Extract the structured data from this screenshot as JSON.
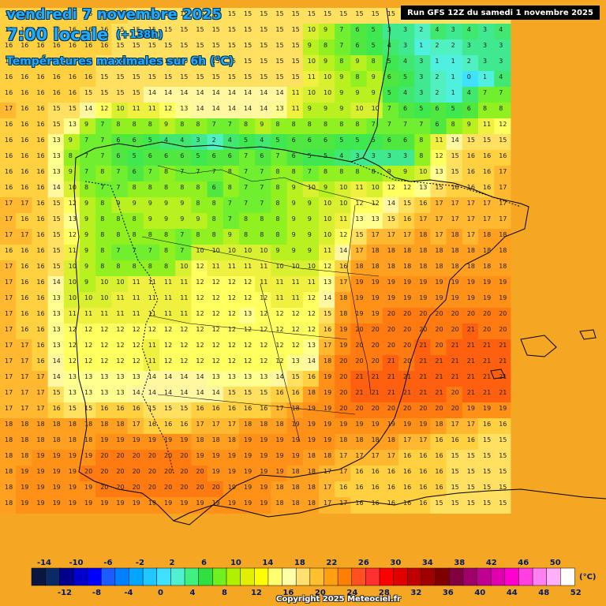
{
  "header": {
    "date": "vendredi 7 novembre 2025",
    "time": "7:00 locale",
    "lead": "(+138h)",
    "parameter": "Températures maximales sur 6h (°C)",
    "run": "Run GFS 12Z du samedi 1 novembre 2025"
  },
  "footer": {
    "copyright": "Copyright 2025 Meteociel.fr"
  },
  "legend": {
    "unit": "(°C)",
    "top_labels": [
      "-14",
      "-10",
      "-6",
      "-2",
      "2",
      "6",
      "10",
      "14",
      "18",
      "22",
      "26",
      "30",
      "34",
      "38",
      "42",
      "46",
      "50"
    ],
    "bottom_labels": [
      "-12",
      "-8",
      "-4",
      "0",
      "4",
      "8",
      "12",
      "16",
      "20",
      "24",
      "28",
      "32",
      "36",
      "40",
      "44",
      "48",
      "52"
    ],
    "colors": [
      "#0a1540",
      "#0a2a66",
      "#00008b",
      "#0000cd",
      "#0000ff",
      "#1a5cff",
      "#0080ff",
      "#00a6ff",
      "#20c8ff",
      "#40e0ff",
      "#50f0d0",
      "#40f080",
      "#30e040",
      "#70f020",
      "#b0f000",
      "#e0f000",
      "#ffff00",
      "#ffff70",
      "#ffffa8",
      "#ffe070",
      "#ffc030",
      "#ffa010",
      "#ff8000",
      "#ff5020",
      "#ff3030",
      "#ff0000",
      "#e00000",
      "#c00000",
      "#a00000",
      "#800000",
      "#800040",
      "#a0006a",
      "#c00090",
      "#e000b0",
      "#ff00d0",
      "#ff40e0",
      "#ff80f0",
      "#ffb0f8",
      "#ffffff"
    ]
  },
  "grid_rows": [
    "16 16 16 16 16 16 16 16 15 15 15 15 15 15 15 15 15 15 15 15 15 15 15 15",
    "16 16 16 16 16 16 16 15 15 15 15 15 15 15 15 15 15 15 15 10  9  7  6  5",
    "16 16 16 16 16 16 16 15 15 15 15 15 15 15 15 15 15 15 15  9  8  7  6  5",
    "16 16 16 16 16 16 15 15 15 15 15 15 15 15 15 15 15 15 15 10  9  8  9  8",
    "16 16 16 16 16 16 15 15 15 15 15 15 15 15 15 15 15 15 15 11 10  9  8  9",
    "16 16 16 16 16 15 15 15 15 14 14 14 14 14 14 14 14 14 11 10 10  9  9  9",
    "17 16 16 15 15 14 12 10 11 11 12 13 14 14 14 14 14 13 11  9  9  9 10 10",
    "16 16 16 15 13  9  7  8  8  8  9  8  8  7  7  8  9  8  8  8  8  8  8  7",
    "16 16 16 13  9  7  7  6  6  5  4  4  3  2  4  5  4  5  6  6  6  5  5  5",
    "16 16 16 13  8  7  7  6  5  6  6  6  5  6  6  7  6  7  6  5  5  4  3  3",
    "16 16 16 13  9  7  8  7  6  7  8  7  7  7  8  7  7  8  8  7  8  8  8  8",
    "16 16 16 14 10  8  7  7  8  8  8  8  8  6  8  7  7  8  9 10  9 10 11 10",
    "17 17 16 15 12  9  8  9  9  9  9  9  8  8  7  7  7  8  9  9 10 10 12 12",
    "17 16 16 15 13  9  8  8  8  9  9  9  9  8  7  8  8  8  9  9 10 11 13 13",
    "17 17 16 15 12  9  8  8  8  8  8  7  8  8  9  8  8  8  9  9 10 12 15 17",
    "16 16 16 15 11  9  8  7  7  7  8  7 10 10 10 10 10  9  9  9 11 14 17 18",
    "17 16 16 15 10  9  8  8  8  8  8 10 12 11 11 11 11 10 10 10 12 16 18 18",
    "17 16 16 14 10  9 10 10 11 11 11 11 12 12 12 12 11 11 11 11 13 17 19 19",
    "17 16 16 13 10 10 10 11 11 11 11 11 12 12 12 12 12 11 11 12 14 18 19 19",
    "17 16 16 13 11 11 11 11 11 11 11 11 12 12 12 13 12 12 12 12 15 18 19 19",
    "17 16 16 13 12 12 12 12 12 12 12 12 12 12 12 12 12 12 12 12 16 19 20 20",
    "17 17 16 13 12 12 12 12 12 11 12 12 12 12 12 12 12 12 12 13 17 19 20 20",
    "17 17 16 14 12 12 12 12 12 11 12 12 12 12 12 12 12 12 13 14 18 20 20 20",
    "17 17 17 14 13 13 13 13 13 14 14 14 14 13 13 13 13 14 15 16 19 20 21 21",
    "17 17 17 15 13 13 13 13 14 14 14 14 14 14 15 15 15 16 16 18 19 20 21 21",
    "17 17 17 16 15 15 16 16 16 15 15 15 16 16 16 16 16 17 18 19 19 20 20 20",
    "18 18 18 18 18 18 18 18 17 16 16 16 17 17 17 18 18 18 19 19 19 19 19 19",
    "18 18 18 18 18 18 19 19 19 19 19 19 18 18 18 19 19 19 19 19 19 18 18 18",
    "18 18 19 19 19 19 20 20 20 20 20 20 19 19 19 19 19 19 19 18 18 17 17 17",
    "18 19 19 19 19 20 20 20 20 20 20 20 20 19 19 19 19 19 18 18 17 17 16 16",
    "18 19 19 19 19 19 20 20 20 20 20 20 20 20 19 19 19 18 18 18 17 16 16 16",
    "18 19 19 19 19 19 19 19 19 19 19 19 19 19 19 19 19 18 18 18 17 17 16 16"
  ],
  "grid_rows_east": [
    "15 15 15 15 15 15 15 15",
    " 3  3  2  4  3  4  3  4",
    " 4  3  1  2  2  3  3  3",
    " 5  4  3  1  1  2  3  3",
    " 6  5  3  2  1  0  1  4",
    " 5  4  3  2  1  4  7  7",
    " 7  6  5  6  5  6  8  8",
    " 7  7  7  6  8  9 11 12",
    " 6  6  8 11 14 15 15 15",
    " 3  3  8 12 15 16 16 16",
    " 9  9 10 13 15 16 16 17",
    "12 12 13 15 16 16 16 17",
    "14 15 16 17 17 17 17 17",
    "15 16 17 17 17 17 17 17",
    "17 17 18 17 18 17 18 18",
    "18 18 18 18 18 18 18 18",
    "18 18 18 18 18 18 18 18",
    "19 19 19 19 19 19 19 19",
    "19 19 19 19 19 19 19 19",
    "20 20 20 20 20 20 20 20",
    "20 20 20 20 20 21 20 20",
    "20 20 21 20 21 21 21 21",
    "21 20 21 21 21 21 21 21",
    "21 21 21 21 21 21 21 21",
    "21 21 21 21 20 21 21 21",
    "20 20 20 20 20 19 19 19",
    "19 19 19 18 17 17 16 16",
    "18 17 17 16 16 16 15 15",
    "17 16 16 16 15 15 15 15",
    "16 16 16 16 15 15 15 15",
    "16 16 16 16 15 15 15 15",
    "16 16 16 15 15 15 15 15"
  ]
}
